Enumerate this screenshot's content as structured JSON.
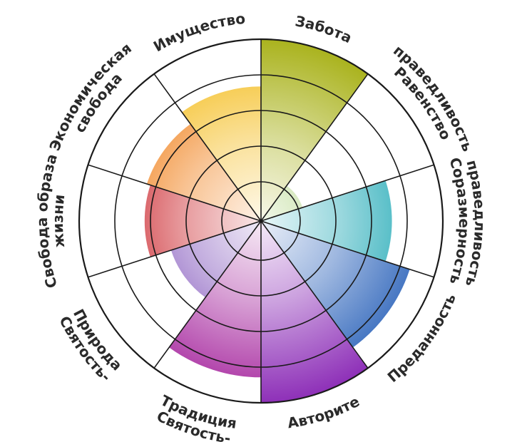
{
  "chart_data": {
    "type": "radial-sector",
    "title": "",
    "rings": 5,
    "max": 5,
    "categories": [
      {
        "label": "Забота",
        "lines": [
          "Забота"
        ],
        "value": 5,
        "color": "#aab31e"
      },
      {
        "label": "Справедливость-Равенство",
        "lines": [
          "Справедливость-",
          "Равенство"
        ],
        "value": 1.2,
        "color": "#79b52c"
      },
      {
        "label": "Справедливость-Соразмерность",
        "lines": [
          "Справедливость-",
          "Соразмерность"
        ],
        "value": 3.6,
        "color": "#1aa7b4"
      },
      {
        "label": "Преданность",
        "lines": [
          "Преданность"
        ],
        "value": 4.3,
        "color": "#2a62b9"
      },
      {
        "label": "Авторите",
        "lines": [
          "Авторите"
        ],
        "value": 5,
        "color": "#8e30b8"
      },
      {
        "label": "Святость-Традиция",
        "lines": [
          "Святость-",
          "Традиция"
        ],
        "value": 4.3,
        "color": "#a7299f"
      },
      {
        "label": "Святость-Природа",
        "lines": [
          "Святость-",
          "Природа"
        ],
        "value": 2.6,
        "color": "#6a34b0"
      },
      {
        "label": "Свобода образа жизни",
        "lines": [
          "Свобода образа",
          "жизни"
        ],
        "value": 3.2,
        "color": "#c7151d"
      },
      {
        "label": "Экономическая свобода",
        "lines": [
          "Экономическая",
          "свобода"
        ],
        "value": 3.3,
        "color": "#f07a0e"
      },
      {
        "label": "Имущество",
        "lines": [
          "Имущество"
        ],
        "value": 3.7,
        "color": "#f4bd1e"
      }
    ]
  }
}
